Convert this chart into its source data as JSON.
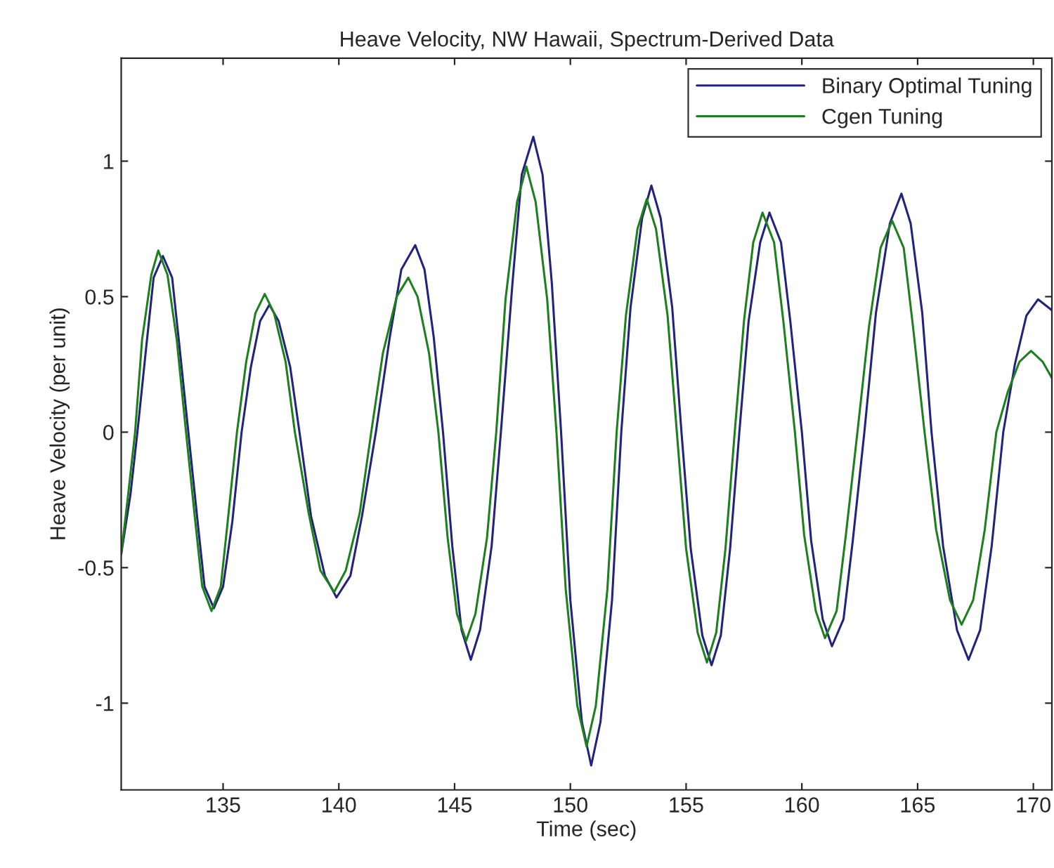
{
  "chart_data": {
    "type": "line",
    "title": "Heave Velocity, NW Hawaii, Spectrum-Derived Data",
    "xlabel": "Time (sec)",
    "ylabel": "Heave Velocity (per unit)",
    "xlim": [
      130.6,
      170.8
    ],
    "ylim": [
      -1.32,
      1.38
    ],
    "xticks": [
      135,
      140,
      145,
      150,
      155,
      160,
      165,
      170
    ],
    "yticks": [
      -1,
      -0.5,
      0,
      0.5,
      1
    ],
    "grid": false,
    "legend": "top right",
    "line_style": "solid",
    "marker": "none",
    "series": [
      {
        "name": "Binary Optimal Tuning",
        "color": "#22227f",
        "x": [
          130.6,
          131.0,
          131.3,
          131.7,
          132.0,
          132.4,
          132.8,
          133.1,
          133.5,
          133.9,
          134.2,
          134.6,
          135.0,
          135.4,
          135.8,
          136.2,
          136.6,
          137.0,
          137.4,
          137.9,
          138.3,
          138.8,
          139.4,
          139.9,
          140.5,
          141.0,
          141.6,
          142.2,
          142.7,
          143.3,
          143.7,
          144.1,
          144.5,
          144.9,
          145.3,
          145.7,
          146.1,
          146.6,
          147.0,
          147.5,
          147.9,
          148.4,
          148.8,
          149.2,
          149.6,
          150.0,
          150.5,
          150.9,
          151.3,
          151.8,
          152.2,
          152.6,
          153.1,
          153.5,
          153.9,
          154.4,
          154.8,
          155.2,
          155.7,
          156.1,
          156.5,
          156.9,
          157.3,
          157.7,
          158.2,
          158.6,
          159.1,
          159.5,
          160.0,
          160.4,
          160.9,
          161.3,
          161.8,
          162.2,
          162.7,
          163.2,
          163.8,
          164.3,
          164.7,
          165.2,
          165.6,
          166.1,
          166.7,
          167.2,
          167.7,
          168.2,
          168.7,
          169.2,
          169.7,
          170.2,
          170.8
        ],
        "values": [
          -0.45,
          -0.23,
          0,
          0.33,
          0.57,
          0.65,
          0.57,
          0.33,
          0,
          -0.33,
          -0.57,
          -0.65,
          -0.57,
          -0.33,
          0,
          0.24,
          0.41,
          0.47,
          0.41,
          0.24,
          0,
          -0.31,
          -0.53,
          -0.61,
          -0.53,
          -0.31,
          0,
          0.35,
          0.6,
          0.69,
          0.6,
          0.35,
          0,
          -0.42,
          -0.73,
          -0.84,
          -0.73,
          -0.42,
          0,
          0.55,
          0.95,
          1.09,
          0.95,
          0.55,
          0,
          -0.62,
          -1.07,
          -1.23,
          -1.07,
          -0.62,
          0,
          0.46,
          0.79,
          0.91,
          0.79,
          0.46,
          0,
          -0.43,
          -0.75,
          -0.86,
          -0.75,
          -0.43,
          0,
          0.41,
          0.7,
          0.81,
          0.7,
          0.41,
          0,
          -0.4,
          -0.69,
          -0.79,
          -0.69,
          -0.4,
          0,
          0.44,
          0.77,
          0.88,
          0.77,
          0.44,
          0,
          -0.42,
          -0.73,
          -0.84,
          -0.73,
          -0.42,
          0,
          0.25,
          0.43,
          0.49,
          0.45
        ]
      },
      {
        "name": "Cgen Tuning",
        "color": "#1e7f1e",
        "x": [
          130.6,
          130.9,
          131.2,
          131.5,
          131.9,
          132.2,
          132.6,
          133.0,
          133.4,
          133.8,
          134.1,
          134.5,
          134.9,
          135.2,
          135.6,
          136.0,
          136.4,
          136.8,
          137.2,
          137.7,
          138.1,
          138.7,
          139.2,
          139.8,
          140.3,
          140.9,
          141.4,
          141.9,
          142.5,
          143.0,
          143.4,
          143.9,
          144.3,
          144.7,
          145.1,
          145.5,
          145.9,
          146.4,
          146.8,
          147.2,
          147.7,
          148.1,
          148.5,
          149.0,
          149.4,
          149.8,
          150.3,
          150.7,
          151.1,
          151.6,
          152.0,
          152.4,
          152.9,
          153.3,
          153.7,
          154.2,
          154.6,
          155.0,
          155.5,
          155.9,
          156.3,
          156.7,
          157.1,
          157.5,
          157.9,
          158.3,
          158.8,
          159.2,
          159.7,
          160.1,
          160.6,
          161.0,
          161.5,
          161.9,
          162.4,
          162.9,
          163.4,
          163.9,
          164.4,
          164.8,
          165.3,
          165.8,
          166.4,
          166.9,
          167.4,
          167.9,
          168.4,
          168.9,
          169.4,
          169.9,
          170.4,
          170.8
        ],
        "values": [
          -0.45,
          -0.23,
          0,
          0.34,
          0.58,
          0.67,
          0.58,
          0.34,
          0,
          -0.33,
          -0.57,
          -0.66,
          -0.57,
          -0.33,
          0,
          0.26,
          0.44,
          0.51,
          0.44,
          0.26,
          0,
          -0.3,
          -0.51,
          -0.59,
          -0.51,
          -0.3,
          0,
          0.29,
          0.5,
          0.57,
          0.5,
          0.29,
          0,
          -0.39,
          -0.67,
          -0.77,
          -0.67,
          -0.39,
          0,
          0.49,
          0.85,
          0.98,
          0.85,
          0.49,
          0,
          -0.58,
          -1.01,
          -1.16,
          -1.01,
          -0.58,
          0,
          0.43,
          0.75,
          0.86,
          0.75,
          0.43,
          0,
          -0.43,
          -0.74,
          -0.85,
          -0.74,
          -0.43,
          0,
          0.41,
          0.7,
          0.81,
          0.7,
          0.41,
          0,
          -0.38,
          -0.66,
          -0.76,
          -0.66,
          -0.38,
          0,
          0.39,
          0.68,
          0.78,
          0.68,
          0.39,
          0,
          -0.36,
          -0.62,
          -0.71,
          -0.62,
          -0.36,
          0,
          0.15,
          0.26,
          0.3,
          0.26,
          0.2
        ]
      }
    ]
  }
}
